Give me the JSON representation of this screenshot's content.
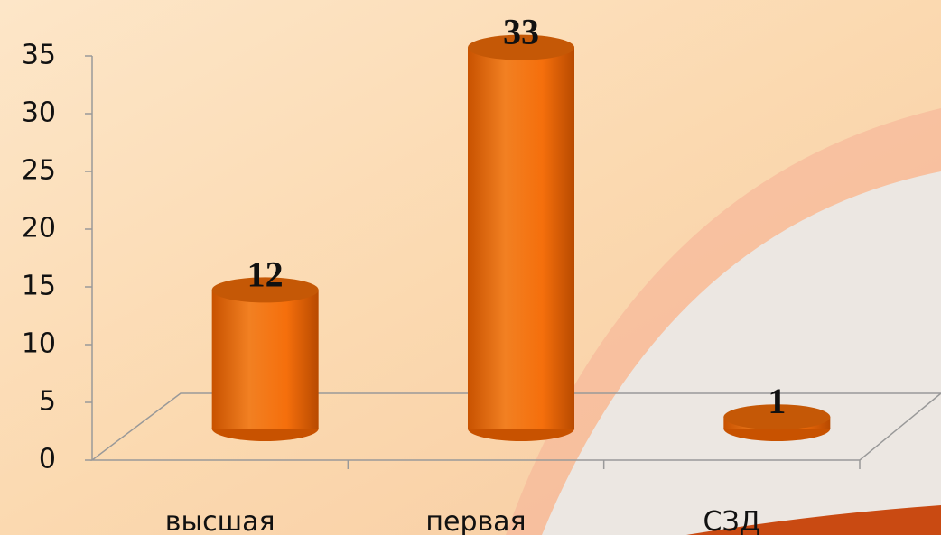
{
  "chart_data": {
    "type": "bar",
    "categories": [
      "высшая",
      "первая",
      "СЗД"
    ],
    "values": [
      12,
      33,
      1
    ],
    "color": "#f07010",
    "ylim": [
      0,
      35
    ],
    "yticks": [
      0,
      5,
      10,
      15,
      20,
      25,
      30,
      35
    ]
  }
}
